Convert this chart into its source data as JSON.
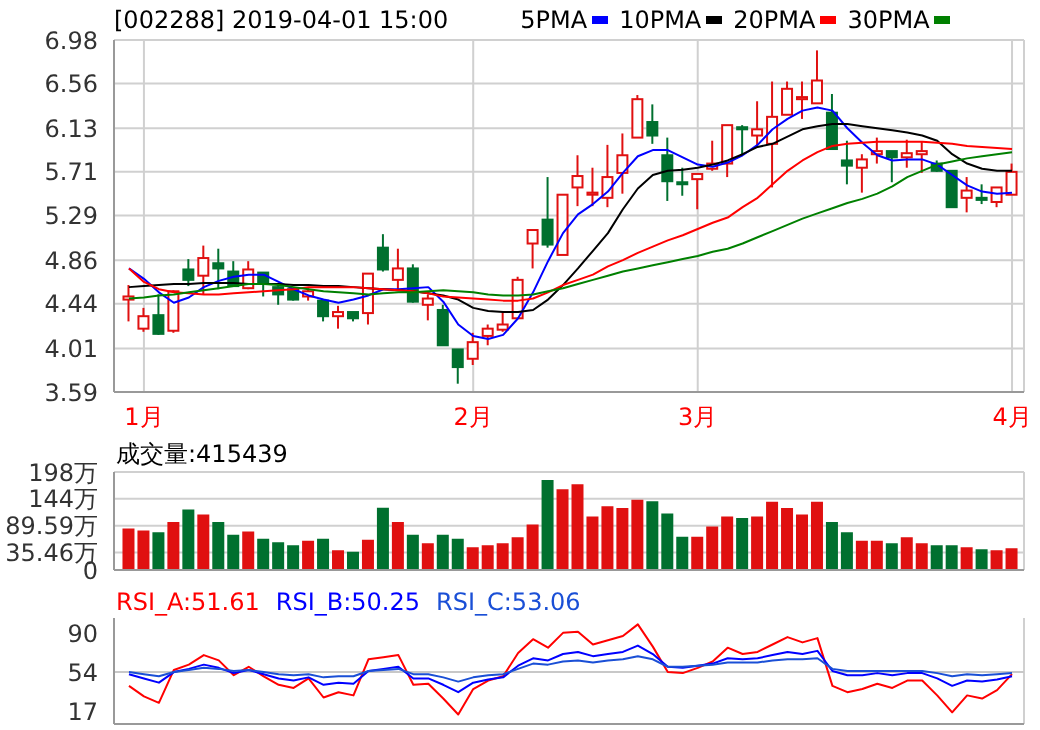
{
  "chart_data": [
    {
      "type": "candlestick",
      "title": "[002288] 2019-04-01 15:00",
      "legend": "top",
      "marker": "none",
      "grid": true,
      "categories": [
        null,
        "1月",
        null,
        null,
        null,
        null,
        null,
        null,
        null,
        null,
        null,
        null,
        null,
        null,
        null,
        null,
        null,
        null,
        null,
        null,
        null,
        null,
        null,
        "2月",
        null,
        null,
        null,
        null,
        null,
        null,
        null,
        null,
        null,
        null,
        null,
        null,
        null,
        null,
        "3月",
        null,
        null,
        null,
        null,
        null,
        null,
        null,
        null,
        null,
        null,
        null,
        null,
        null,
        null,
        null,
        null,
        null,
        null,
        null,
        null,
        "4月"
      ],
      "ohlc": [
        [
          4.48,
          4.62,
          4.27,
          4.51
        ],
        [
          4.2,
          4.4,
          4.17,
          4.32
        ],
        [
          4.33,
          4.53,
          4.14,
          4.15
        ],
        [
          4.18,
          4.57,
          4.16,
          4.56
        ],
        [
          4.77,
          4.87,
          4.61,
          4.67
        ],
        [
          4.71,
          5.0,
          4.53,
          4.88
        ],
        [
          4.83,
          4.97,
          4.58,
          4.78
        ],
        [
          4.75,
          4.85,
          4.61,
          4.61
        ],
        [
          4.59,
          4.85,
          4.58,
          4.77
        ],
        [
          4.74,
          4.74,
          4.51,
          4.64
        ],
        [
          4.6,
          4.62,
          4.43,
          4.53
        ],
        [
          4.58,
          4.58,
          4.47,
          4.48
        ],
        [
          4.51,
          4.59,
          4.47,
          4.56
        ],
        [
          4.47,
          4.47,
          4.27,
          4.32
        ],
        [
          4.32,
          4.42,
          4.2,
          4.36
        ],
        [
          4.36,
          4.36,
          4.27,
          4.3
        ],
        [
          4.35,
          4.73,
          4.24,
          4.73
        ],
        [
          4.98,
          5.11,
          4.75,
          4.77
        ],
        [
          4.67,
          4.97,
          4.58,
          4.78
        ],
        [
          4.78,
          4.82,
          4.45,
          4.46
        ],
        [
          4.43,
          4.53,
          4.28,
          4.49
        ],
        [
          4.38,
          4.43,
          4.04,
          4.04
        ],
        [
          4.0,
          4.0,
          3.67,
          3.83
        ],
        [
          3.91,
          4.16,
          3.85,
          4.07
        ],
        [
          4.13,
          4.24,
          4.04,
          4.2
        ],
        [
          4.19,
          4.36,
          4.17,
          4.24
        ],
        [
          4.3,
          4.7,
          4.3,
          4.67
        ],
        [
          5.02,
          5.15,
          4.78,
          5.15
        ],
        [
          5.25,
          5.66,
          4.98,
          5.01
        ],
        [
          4.91,
          5.49,
          4.91,
          5.49
        ],
        [
          5.56,
          5.87,
          5.38,
          5.67
        ],
        [
          5.49,
          5.75,
          5.38,
          5.51
        ],
        [
          5.46,
          5.97,
          5.37,
          5.66
        ],
        [
          5.7,
          6.08,
          5.5,
          5.87
        ],
        [
          6.04,
          6.45,
          6.04,
          6.41
        ],
        [
          6.19,
          6.36,
          5.98,
          6.06
        ],
        [
          5.87,
          6.04,
          5.43,
          5.62
        ],
        [
          5.61,
          5.75,
          5.48,
          5.6
        ],
        [
          5.64,
          5.69,
          5.35,
          5.69
        ],
        [
          5.74,
          6.01,
          5.72,
          5.79
        ],
        [
          5.79,
          6.16,
          5.66,
          6.16
        ],
        [
          6.14,
          6.16,
          5.88,
          6.12
        ],
        [
          6.06,
          6.39,
          5.95,
          6.12
        ],
        [
          5.98,
          6.58,
          5.56,
          6.24
        ],
        [
          6.26,
          6.58,
          6.26,
          6.51
        ],
        [
          6.41,
          6.58,
          6.22,
          6.43
        ],
        [
          6.37,
          6.88,
          6.37,
          6.59
        ],
        [
          6.28,
          6.46,
          5.93,
          5.93
        ],
        [
          5.82,
          6.01,
          5.59,
          5.77
        ],
        [
          5.75,
          5.88,
          5.51,
          5.83
        ],
        [
          5.88,
          6.04,
          5.79,
          5.91
        ],
        [
          5.91,
          5.91,
          5.61,
          5.85
        ],
        [
          5.85,
          6.02,
          5.75,
          5.89
        ],
        [
          5.88,
          6.0,
          5.7,
          5.91
        ],
        [
          5.79,
          5.82,
          5.71,
          5.72
        ],
        [
          5.72,
          5.72,
          5.37,
          5.37
        ],
        [
          5.46,
          5.66,
          5.32,
          5.53
        ],
        [
          5.46,
          5.59,
          5.4,
          5.44
        ],
        [
          5.42,
          5.56,
          5.37,
          5.56
        ],
        [
          5.49,
          5.79,
          5.49,
          5.71
        ]
      ],
      "colors": [
        "#e01010",
        "#e01010",
        "#00702f",
        "#e01010",
        "#00702f",
        "#e01010",
        "#00702f",
        "#00702f",
        "#e01010",
        "#00702f",
        "#00702f",
        "#00702f",
        "#e01010",
        "#00702f",
        "#e01010",
        "#00702f",
        "#e01010",
        "#00702f",
        "#e01010",
        "#00702f",
        "#e01010",
        "#00702f",
        "#00702f",
        "#e01010",
        "#e01010",
        "#e01010",
        "#e01010",
        "#e01010",
        "#00702f",
        "#e01010",
        "#e01010",
        "#e01010",
        "#e01010",
        "#e01010",
        "#e01010",
        "#00702f",
        "#00702f",
        "#00702f",
        "#e01010",
        "#e01010",
        "#e01010",
        "#00702f",
        "#e01010",
        "#e01010",
        "#e01010",
        "#e01010",
        "#e01010",
        "#00702f",
        "#00702f",
        "#e01010",
        "#e01010",
        "#00702f",
        "#e01010",
        "#e01010",
        "#00702f",
        "#00702f",
        "#e01010",
        "#00702f",
        "#e01010",
        "#e01010"
      ],
      "series": [
        {
          "type": "line",
          "name": "5PMA",
          "color": "#0000ff",
          "values": [
            4.78,
            4.68,
            4.55,
            4.45,
            4.5,
            4.6,
            4.66,
            4.7,
            4.72,
            4.72,
            4.65,
            4.58,
            4.52,
            4.48,
            4.45,
            4.48,
            4.52,
            4.58,
            4.58,
            4.59,
            4.6,
            4.46,
            4.24,
            4.13,
            4.1,
            4.14,
            4.3,
            4.55,
            4.85,
            5.12,
            5.3,
            5.4,
            5.52,
            5.7,
            5.86,
            5.92,
            5.92,
            5.85,
            5.78,
            5.76,
            5.8,
            5.87,
            5.97,
            6.12,
            6.22,
            6.3,
            6.33,
            6.3,
            6.13,
            5.99,
            5.87,
            5.82,
            5.83,
            5.83,
            5.78,
            5.68,
            5.58,
            5.52,
            5.5,
            5.51
          ]
        },
        {
          "type": "line",
          "name": "10PMA",
          "color": "#000000",
          "values": [
            4.6,
            4.61,
            4.62,
            4.63,
            4.63,
            4.64,
            4.64,
            4.64,
            4.63,
            4.63,
            4.63,
            4.62,
            4.62,
            4.61,
            4.61,
            4.6,
            4.59,
            4.58,
            4.57,
            4.56,
            4.54,
            4.52,
            4.48,
            4.4,
            4.37,
            4.36,
            4.36,
            4.38,
            4.48,
            4.62,
            4.78,
            4.95,
            5.12,
            5.35,
            5.55,
            5.68,
            5.72,
            5.73,
            5.75,
            5.78,
            5.82,
            5.88,
            5.95,
            5.98,
            6.05,
            6.12,
            6.15,
            6.17,
            6.17,
            6.15,
            6.13,
            6.11,
            6.09,
            6.06,
            6.01,
            5.88,
            5.79,
            5.74,
            5.72,
            5.72
          ]
        },
        {
          "type": "line",
          "name": "20PMA",
          "color": "#ff0000",
          "values": [
            4.78,
            4.65,
            4.58,
            4.55,
            4.54,
            4.53,
            4.53,
            4.54,
            4.55,
            4.56,
            4.57,
            4.58,
            4.6,
            4.6,
            4.6,
            4.6,
            4.59,
            4.58,
            4.57,
            4.56,
            4.54,
            4.51,
            4.5,
            4.49,
            4.48,
            4.47,
            4.47,
            4.49,
            4.55,
            4.62,
            4.67,
            4.72,
            4.8,
            4.86,
            4.93,
            4.99,
            5.05,
            5.1,
            5.16,
            5.22,
            5.27,
            5.37,
            5.46,
            5.59,
            5.72,
            5.82,
            5.9,
            5.96,
            5.98,
            5.99,
            6.0,
            6.0,
            6.0,
            6.0,
            5.99,
            5.98,
            5.96,
            5.95,
            5.94,
            5.93
          ]
        },
        {
          "type": "line",
          "name": "30PMA",
          "color": "#008000",
          "values": [
            4.49,
            4.5,
            4.52,
            4.53,
            4.55,
            4.57,
            4.59,
            4.61,
            4.63,
            4.63,
            4.62,
            4.6,
            4.58,
            4.56,
            4.55,
            4.54,
            4.53,
            4.54,
            4.55,
            4.55,
            4.56,
            4.57,
            4.56,
            4.55,
            4.53,
            4.52,
            4.52,
            4.53,
            4.56,
            4.59,
            4.63,
            4.67,
            4.71,
            4.75,
            4.78,
            4.81,
            4.84,
            4.87,
            4.9,
            4.94,
            4.97,
            5.02,
            5.08,
            5.14,
            5.2,
            5.26,
            5.31,
            5.36,
            5.41,
            5.45,
            5.5,
            5.57,
            5.66,
            5.72,
            5.78,
            5.81,
            5.84,
            5.86,
            5.88,
            5.9
          ]
        }
      ],
      "ylim": [
        3.59,
        6.98
      ],
      "yticks": [
        3.59,
        4.01,
        4.44,
        4.86,
        5.29,
        5.71,
        6.13,
        6.56,
        6.98
      ]
    },
    {
      "type": "bar",
      "annotations": [
        "成交量:415439"
      ],
      "grid": true,
      "tick_labels": "y",
      "categories": [
        null,
        null,
        null,
        null,
        null,
        null,
        null,
        null,
        null,
        null,
        null,
        null,
        null,
        null,
        null,
        null,
        null,
        null,
        null,
        null,
        null,
        null,
        null,
        null,
        null,
        null,
        null,
        null,
        null,
        null,
        null,
        null,
        null,
        null,
        null,
        null,
        null,
        null,
        null,
        null,
        null,
        null,
        null,
        null,
        null,
        null,
        null,
        null,
        null,
        null,
        null,
        null,
        null,
        null,
        null,
        null,
        null,
        null,
        null,
        null
      ],
      "values": [
        82,
        78,
        74,
        95,
        120,
        110,
        95,
        69,
        76,
        61,
        54,
        48,
        57,
        61,
        38,
        35,
        59,
        124,
        95,
        69,
        52,
        69,
        61,
        44,
        48,
        52,
        64,
        90,
        180,
        161,
        171,
        106,
        127,
        123,
        140,
        137,
        112,
        65,
        65,
        86,
        106,
        103,
        106,
        136,
        123,
        110,
        136,
        95,
        74,
        57,
        57,
        52,
        64,
        52,
        48,
        48,
        44,
        40,
        38,
        42
      ],
      "colors": [
        "#e01010",
        "#e01010",
        "#00702f",
        "#e01010",
        "#00702f",
        "#e01010",
        "#00702f",
        "#00702f",
        "#e01010",
        "#00702f",
        "#00702f",
        "#00702f",
        "#e01010",
        "#00702f",
        "#e01010",
        "#00702f",
        "#e01010",
        "#00702f",
        "#e01010",
        "#00702f",
        "#e01010",
        "#00702f",
        "#00702f",
        "#e01010",
        "#e01010",
        "#e01010",
        "#e01010",
        "#e01010",
        "#00702f",
        "#e01010",
        "#e01010",
        "#e01010",
        "#e01010",
        "#e01010",
        "#e01010",
        "#00702f",
        "#00702f",
        "#00702f",
        "#e01010",
        "#e01010",
        "#e01010",
        "#00702f",
        "#e01010",
        "#e01010",
        "#e01010",
        "#e01010",
        "#e01010",
        "#00702f",
        "#00702f",
        "#e01010",
        "#e01010",
        "#00702f",
        "#e01010",
        "#e01010",
        "#00702f",
        "#00702f",
        "#e01010",
        "#00702f",
        "#e01010",
        "#e01010"
      ],
      "ylim": [
        0,
        198
      ],
      "yticks": [
        0,
        {
          "value": 35.46,
          "label": "35.46万"
        },
        {
          "value": 89.59,
          "label": "89.59万"
        },
        {
          "value": 144,
          "label": "144万"
        },
        {
          "value": 198,
          "label": "198万"
        }
      ]
    },
    {
      "type": "line",
      "legend": "top left",
      "marker": "none",
      "grid": "x",
      "tick_labels": "y",
      "categories": [
        null,
        null,
        null,
        null,
        null,
        null,
        null,
        null,
        null,
        null,
        null,
        null,
        null,
        null,
        null,
        null,
        null,
        null,
        null,
        null,
        null,
        null,
        null,
        null,
        null,
        null,
        null,
        null,
        null,
        null,
        null,
        null,
        null,
        null,
        null,
        null,
        null,
        null,
        null,
        null,
        null,
        null,
        null,
        null,
        null,
        null,
        null,
        null,
        null,
        null,
        null,
        null,
        null,
        null,
        null,
        null,
        null,
        null,
        null,
        null
      ],
      "ref_lines": [
        {
          "axis": "y",
          "value": 54,
          "color": "#c8c8c8"
        }
      ],
      "series": [
        {
          "name": "RSI_A:51.61",
          "color": "#ff0000",
          "values": [
            41,
            31,
            25,
            56,
            61,
            70,
            65,
            51,
            59,
            50,
            42,
            39,
            48,
            30,
            35,
            32,
            66,
            68,
            70,
            42,
            43,
            29,
            14,
            38,
            46,
            50,
            72,
            85,
            77,
            91,
            92,
            80,
            84,
            88,
            99,
            78,
            54,
            53,
            58,
            64,
            77,
            71,
            73,
            80,
            87,
            82,
            86,
            41,
            35,
            38,
            43,
            39,
            46,
            46,
            32,
            16,
            32,
            29,
            37,
            52
          ]
        },
        {
          "name": "RSI_B:50.25",
          "color": "#0000ff",
          "values": [
            52,
            48,
            44,
            54,
            57,
            61,
            58,
            53,
            56,
            52,
            48,
            46,
            49,
            42,
            44,
            43,
            55,
            57,
            59,
            48,
            48,
            42,
            35,
            44,
            47,
            49,
            60,
            67,
            65,
            71,
            73,
            69,
            71,
            73,
            79,
            71,
            59,
            58,
            60,
            62,
            67,
            66,
            67,
            70,
            73,
            71,
            74,
            55,
            51,
            51,
            53,
            51,
            53,
            53,
            48,
            41,
            46,
            45,
            47,
            50
          ]
        },
        {
          "name": "RSI_C:53.06",
          "color": "#1a4fd6",
          "values": [
            54,
            52,
            50,
            54,
            56,
            58,
            57,
            55,
            56,
            54,
            52,
            51,
            52,
            49,
            50,
            50,
            55,
            56,
            57,
            52,
            52,
            49,
            45,
            49,
            51,
            52,
            57,
            62,
            61,
            64,
            65,
            63,
            65,
            66,
            69,
            66,
            59,
            59,
            60,
            61,
            63,
            63,
            63,
            65,
            66,
            66,
            67,
            57,
            55,
            55,
            55,
            55,
            55,
            55,
            53,
            50,
            52,
            51,
            52,
            53
          ]
        }
      ],
      "ylim": [
        5,
        105
      ],
      "yticks": [
        17,
        54,
        90
      ]
    }
  ]
}
